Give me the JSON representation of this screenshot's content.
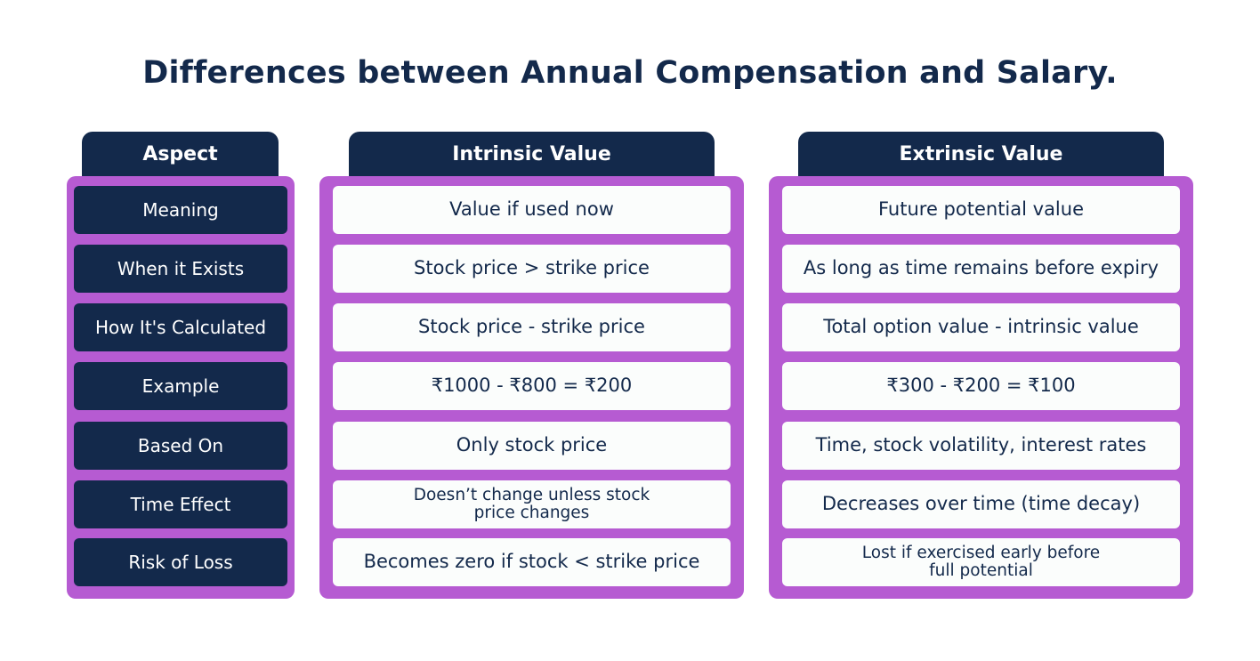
{
  "title": "Differences between Annual Compensation and Salary.",
  "headers": {
    "aspect": "Aspect",
    "intrinsic": "Intrinsic Value",
    "extrinsic": "Extrinsic Value"
  },
  "rows": [
    {
      "aspect": "Meaning",
      "intrinsic": "Value if used now",
      "extrinsic": "Future potential value"
    },
    {
      "aspect": "When it Exists",
      "intrinsic": "Stock price > strike price",
      "extrinsic": "As long as time remains before expiry"
    },
    {
      "aspect": "How It's Calculated",
      "intrinsic": "Stock price - strike price",
      "extrinsic": "Total option value - intrinsic value"
    },
    {
      "aspect": "Example",
      "intrinsic": "₹1000 - ₹800 = ₹200",
      "extrinsic": "₹300 - ₹200 = ₹100"
    },
    {
      "aspect": "Based On",
      "intrinsic": "Only stock price",
      "extrinsic": "Time, stock volatility, interest rates"
    },
    {
      "aspect": "Time Effect",
      "intrinsic": "Doesn’t change unless stock price changes",
      "extrinsic": "Decreases over time (time decay)"
    },
    {
      "aspect": "Risk of Loss",
      "intrinsic": "Becomes zero if stock < strike price",
      "extrinsic": "Lost if exercised early before full potential"
    }
  ],
  "wrapped_lines": {
    "intrinsic_time_effect": [
      "Doesn’t change unless stock",
      "price changes"
    ],
    "extrinsic_risk_of_loss": [
      "Lost if exercised early before",
      "full potential"
    ]
  },
  "colors": {
    "navy": "#13294b",
    "purple": "#b65bd2",
    "cell_light": "#fbfdfc",
    "background": "#ffffff"
  }
}
